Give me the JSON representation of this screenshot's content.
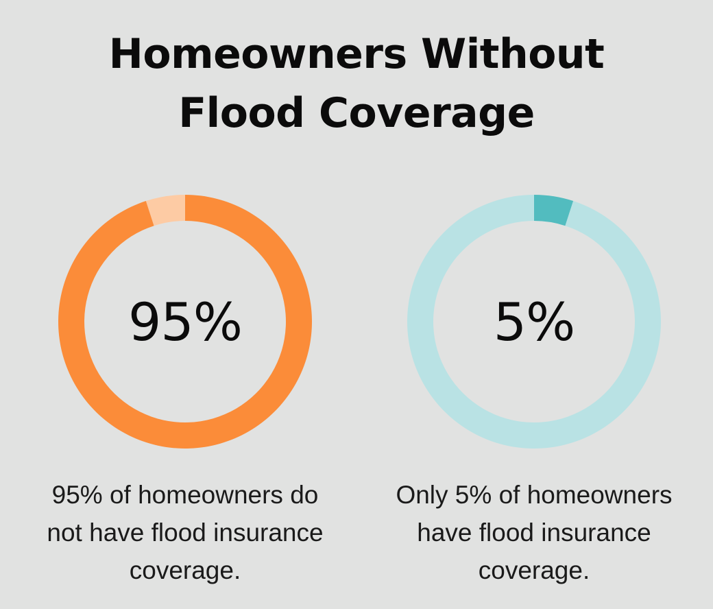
{
  "title": {
    "line1": "Homeowners Without",
    "line2": "Flood Coverage"
  },
  "chart_data": [
    {
      "type": "pie",
      "subtype": "donut",
      "slices": [
        {
          "label": "do not have flood insurance coverage",
          "value": 95,
          "color": "#fb8c39"
        },
        {
          "label": "have flood insurance coverage",
          "value": 5,
          "color": "#fdcba4"
        }
      ],
      "highlight_value": 95,
      "center_label": "95%",
      "caption": "95% of homeowners do not have flood insurance coverage."
    },
    {
      "type": "pie",
      "subtype": "donut",
      "slices": [
        {
          "label": "have flood insurance coverage",
          "value": 5,
          "color": "#52bcbf"
        },
        {
          "label": "do not have flood insurance coverage",
          "value": 95,
          "color": "#b9e2e4"
        }
      ],
      "highlight_value": 5,
      "center_label": "5%",
      "caption": "Only 5% of homeowners have flood insurance coverage."
    }
  ],
  "captions": {
    "left": [
      "95% of homeowners do",
      "not have flood insurance",
      "coverage."
    ],
    "right": [
      "Only 5% of homeowners",
      "have flood insurance",
      "coverage."
    ]
  }
}
